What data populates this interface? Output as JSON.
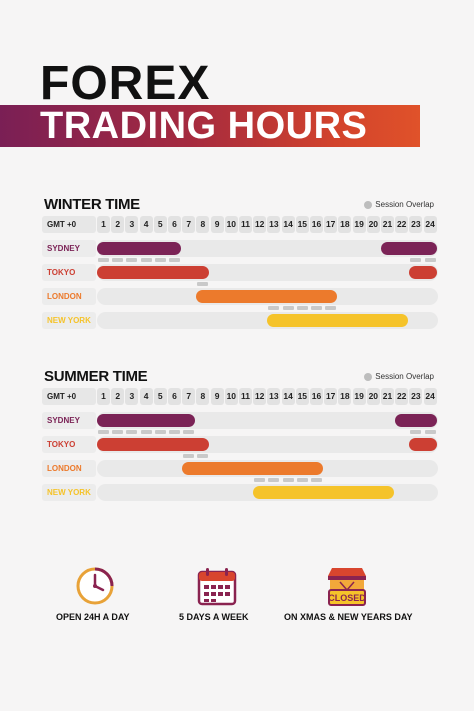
{
  "header": {
    "title_line1": "FOREX",
    "title_line2": "TRADING HOURS"
  },
  "legend": {
    "overlap_label": "Session Overlap"
  },
  "gmt_label": "GMT +0",
  "hours": [
    "1",
    "2",
    "3",
    "4",
    "5",
    "6",
    "7",
    "8",
    "9",
    "10",
    "11",
    "12",
    "13",
    "14",
    "15",
    "16",
    "17",
    "18",
    "19",
    "20",
    "21",
    "22",
    "23",
    "24"
  ],
  "colors": {
    "sydney": "#7b2356",
    "tokyo": "#cc3f33",
    "london": "#ec7a2c",
    "newyork": "#f5c32a",
    "overlap": "#c9c9c9"
  },
  "winter": {
    "title": "WINTER TIME",
    "sessions": [
      {
        "name": "SYDNEY",
        "ranges": [
          [
            1,
            6
          ],
          [
            21,
            24
          ]
        ]
      },
      {
        "name": "TOKYO",
        "ranges": [
          [
            1,
            8
          ],
          [
            23,
            24
          ]
        ]
      },
      {
        "name": "LONDON",
        "ranges": [
          [
            8,
            17
          ]
        ]
      },
      {
        "name": "NEW YORK",
        "ranges": [
          [
            13,
            22
          ]
        ]
      }
    ]
  },
  "summer": {
    "title": "SUMMER TIME",
    "sessions": [
      {
        "name": "SYDNEY",
        "ranges": [
          [
            1,
            7
          ],
          [
            22,
            24
          ]
        ]
      },
      {
        "name": "TOKYO",
        "ranges": [
          [
            1,
            8
          ],
          [
            23,
            24
          ]
        ]
      },
      {
        "name": "LONDON",
        "ranges": [
          [
            7,
            16
          ]
        ]
      },
      {
        "name": "NEW YORK",
        "ranges": [
          [
            12,
            21
          ]
        ]
      }
    ]
  },
  "features": [
    {
      "icon": "clock-icon",
      "label": "OPEN 24H A DAY"
    },
    {
      "icon": "calendar-icon",
      "label": "5 DAYS A WEEK"
    },
    {
      "icon": "closed-sign-icon",
      "label": "ON XMAS & NEW YEARS DAY"
    }
  ]
}
